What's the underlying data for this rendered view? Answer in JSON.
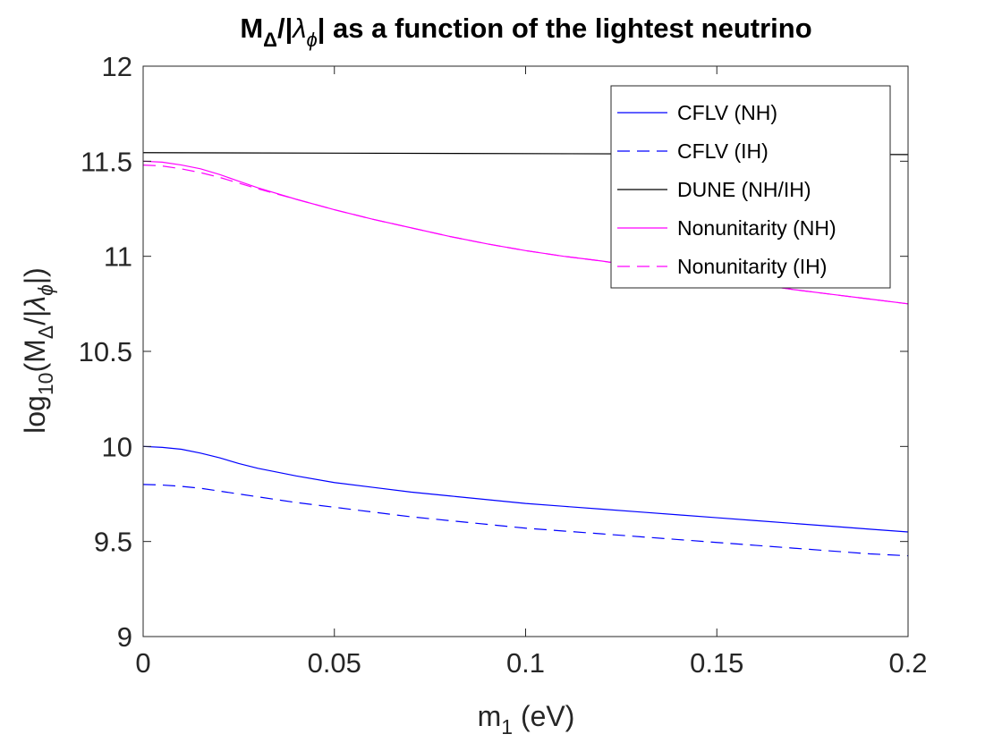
{
  "chart_data": {
    "type": "line",
    "title": {
      "prefix": "M",
      "sub1": "Δ",
      "mid": "/|",
      "greek": "λ",
      "sub2": "ϕ",
      "suffix": "| as a function of the lightest neutrino"
    },
    "xlabel": {
      "main": "m",
      "sub": "1",
      "rest": " (eV)"
    },
    "ylabel": {
      "a": "log",
      "a_sub": "10",
      "b": "(M",
      "b_sub": "Δ",
      "c": "/|",
      "greek": "λ",
      "greek_sub": "ϕ",
      "d": "|)"
    },
    "xlim": [
      0,
      0.2
    ],
    "ylim": [
      9,
      12
    ],
    "xticks": [
      0,
      0.05,
      0.1,
      0.15,
      0.2
    ],
    "xtick_labels": [
      "0",
      "0.05",
      "0.1",
      "0.15",
      "0.2"
    ],
    "yticks": [
      9,
      9.5,
      10,
      10.5,
      11,
      11.5,
      12
    ],
    "ytick_labels": [
      "9",
      "9.5",
      "10",
      "10.5",
      "11",
      "11.5",
      "12"
    ],
    "grid": false,
    "legend_position": "top-right",
    "series": [
      {
        "name": "CFLV (NH)",
        "color": "#0000ff",
        "dash": "solid",
        "x": [
          0,
          0.005,
          0.01,
          0.015,
          0.02,
          0.025,
          0.03,
          0.04,
          0.05,
          0.06,
          0.07,
          0.08,
          0.09,
          0.1,
          0.11,
          0.12,
          0.13,
          0.14,
          0.15,
          0.16,
          0.17,
          0.18,
          0.19,
          0.2
        ],
        "y": [
          10.0,
          9.995,
          9.985,
          9.965,
          9.94,
          9.91,
          9.885,
          9.845,
          9.81,
          9.785,
          9.76,
          9.74,
          9.72,
          9.7,
          9.685,
          9.67,
          9.655,
          9.64,
          9.625,
          9.61,
          9.595,
          9.58,
          9.565,
          9.55
        ]
      },
      {
        "name": "CFLV (IH)",
        "color": "#0000ff",
        "dash": "dashed",
        "x": [
          0,
          0.005,
          0.01,
          0.015,
          0.02,
          0.025,
          0.03,
          0.04,
          0.05,
          0.06,
          0.07,
          0.08,
          0.09,
          0.1,
          0.11,
          0.12,
          0.13,
          0.14,
          0.15,
          0.16,
          0.17,
          0.18,
          0.19,
          0.2
        ],
        "y": [
          9.8,
          9.797,
          9.79,
          9.78,
          9.765,
          9.75,
          9.735,
          9.705,
          9.68,
          9.655,
          9.63,
          9.61,
          9.59,
          9.57,
          9.555,
          9.54,
          9.525,
          9.51,
          9.495,
          9.48,
          9.465,
          9.45,
          9.435,
          9.425
        ]
      },
      {
        "name": "DUNE (NH/IH)",
        "color": "#000000",
        "dash": "solid",
        "x": [
          0,
          0.2
        ],
        "y": [
          11.545,
          11.535
        ]
      },
      {
        "name": "Nonunitarity (NH)",
        "color": "#ff00ff",
        "dash": "solid",
        "x": [
          0,
          0.005,
          0.01,
          0.015,
          0.02,
          0.025,
          0.03,
          0.04,
          0.05,
          0.06,
          0.07,
          0.08,
          0.09,
          0.1,
          0.11,
          0.12,
          0.13,
          0.14,
          0.15,
          0.16,
          0.17,
          0.18,
          0.19,
          0.2
        ],
        "y": [
          11.5,
          11.495,
          11.48,
          11.46,
          11.43,
          11.395,
          11.36,
          11.3,
          11.245,
          11.195,
          11.15,
          11.105,
          11.065,
          11.03,
          11.0,
          10.975,
          10.945,
          10.915,
          10.885,
          10.855,
          10.825,
          10.8,
          10.775,
          10.75
        ]
      },
      {
        "name": "Nonunitarity (IH)",
        "color": "#ff00ff",
        "dash": "dashed",
        "x": [
          0,
          0.005,
          0.01,
          0.015,
          0.02,
          0.025,
          0.03,
          0.04,
          0.05,
          0.06,
          0.07,
          0.08,
          0.09,
          0.1,
          0.11,
          0.12,
          0.13,
          0.14,
          0.15,
          0.16,
          0.17,
          0.18,
          0.19,
          0.2
        ],
        "y": [
          11.48,
          11.475,
          11.46,
          11.44,
          11.415,
          11.385,
          11.355,
          11.3,
          11.245,
          11.195,
          11.15,
          11.105,
          11.065,
          11.03,
          11.0,
          10.975,
          10.945,
          10.915,
          10.885,
          10.855,
          10.825,
          10.8,
          10.775,
          10.75
        ]
      }
    ]
  }
}
